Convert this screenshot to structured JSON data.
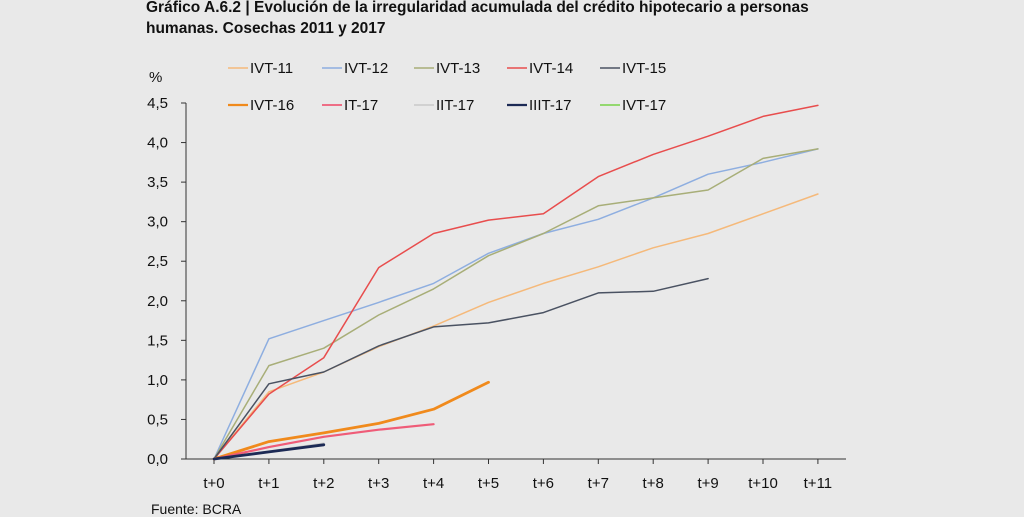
{
  "chart_data": {
    "type": "line",
    "title": "Gráfico A.6.2 | Evolución de la irregularidad acumulada del crédito hipotecario a personas humanas. Cosechas 2011 y 2017",
    "ylabel": "%",
    "source": "Fuente: BCRA",
    "categories": [
      "t+0",
      "t+1",
      "t+2",
      "t+3",
      "t+4",
      "t+5",
      "t+6",
      "t+7",
      "t+8",
      "t+9",
      "t+10",
      "t+11"
    ],
    "ylim": [
      0,
      4.5
    ],
    "yticks": [
      "0,0",
      "0,5",
      "1,0",
      "1,5",
      "2,0",
      "2,5",
      "3,0",
      "3,5",
      "4,0",
      "4,5"
    ],
    "grid": false,
    "legend_position": "top",
    "series": [
      {
        "name": "IVT-11",
        "color": "#f5b97a",
        "width": 1.5,
        "values": [
          0,
          0.85,
          1.1,
          1.42,
          1.68,
          1.98,
          2.22,
          2.43,
          2.67,
          2.85,
          3.1,
          3.35
        ]
      },
      {
        "name": "IVT-12",
        "color": "#8eaee0",
        "width": 1.5,
        "values": [
          0,
          1.52,
          1.75,
          1.98,
          2.22,
          2.6,
          2.85,
          3.03,
          3.3,
          3.6,
          3.75,
          3.92
        ]
      },
      {
        "name": "IVT-13",
        "color": "#a8ae78",
        "width": 1.5,
        "values": [
          0,
          1.18,
          1.4,
          1.82,
          2.15,
          2.57,
          2.85,
          3.2,
          3.3,
          3.4,
          3.8,
          3.92
        ]
      },
      {
        "name": "IVT-14",
        "color": "#e84d4d",
        "width": 1.5,
        "values": [
          0,
          0.82,
          1.28,
          2.42,
          2.85,
          3.02,
          3.1,
          3.57,
          3.85,
          4.08,
          4.33,
          4.47
        ]
      },
      {
        "name": "IVT-15",
        "color": "#4a5262",
        "width": 1.5,
        "values": [
          0,
          0.95,
          1.1,
          1.43,
          1.67,
          1.72,
          1.85,
          2.1,
          2.12,
          2.28,
          null,
          null
        ]
      },
      {
        "name": "IVT-16",
        "color": "#f08a1c",
        "width": 2.8,
        "values": [
          0,
          0.22,
          0.33,
          0.45,
          0.63,
          0.97,
          null,
          null,
          null,
          null,
          null,
          null
        ]
      },
      {
        "name": "IT-17",
        "color": "#ef5c78",
        "width": 2.2,
        "values": [
          0,
          0.15,
          0.28,
          0.37,
          0.44,
          null,
          null,
          null,
          null,
          null,
          null,
          null
        ]
      },
      {
        "name": "IIT-17",
        "color": "#c9c9c9",
        "width": 1.5,
        "values": [
          0,
          0.1,
          0.2,
          null,
          null,
          null,
          null,
          null,
          null,
          null,
          null,
          null
        ]
      },
      {
        "name": "IIIT-17",
        "color": "#1c2a55",
        "width": 2.8,
        "values": [
          0,
          0.09,
          0.18,
          null,
          null,
          null,
          null,
          null,
          null,
          null,
          null,
          null
        ]
      },
      {
        "name": "IVT-17",
        "color": "#79d349",
        "width": 1.5,
        "values": [
          0,
          null,
          null,
          null,
          null,
          null,
          null,
          null,
          null,
          null,
          null,
          null
        ]
      }
    ]
  }
}
